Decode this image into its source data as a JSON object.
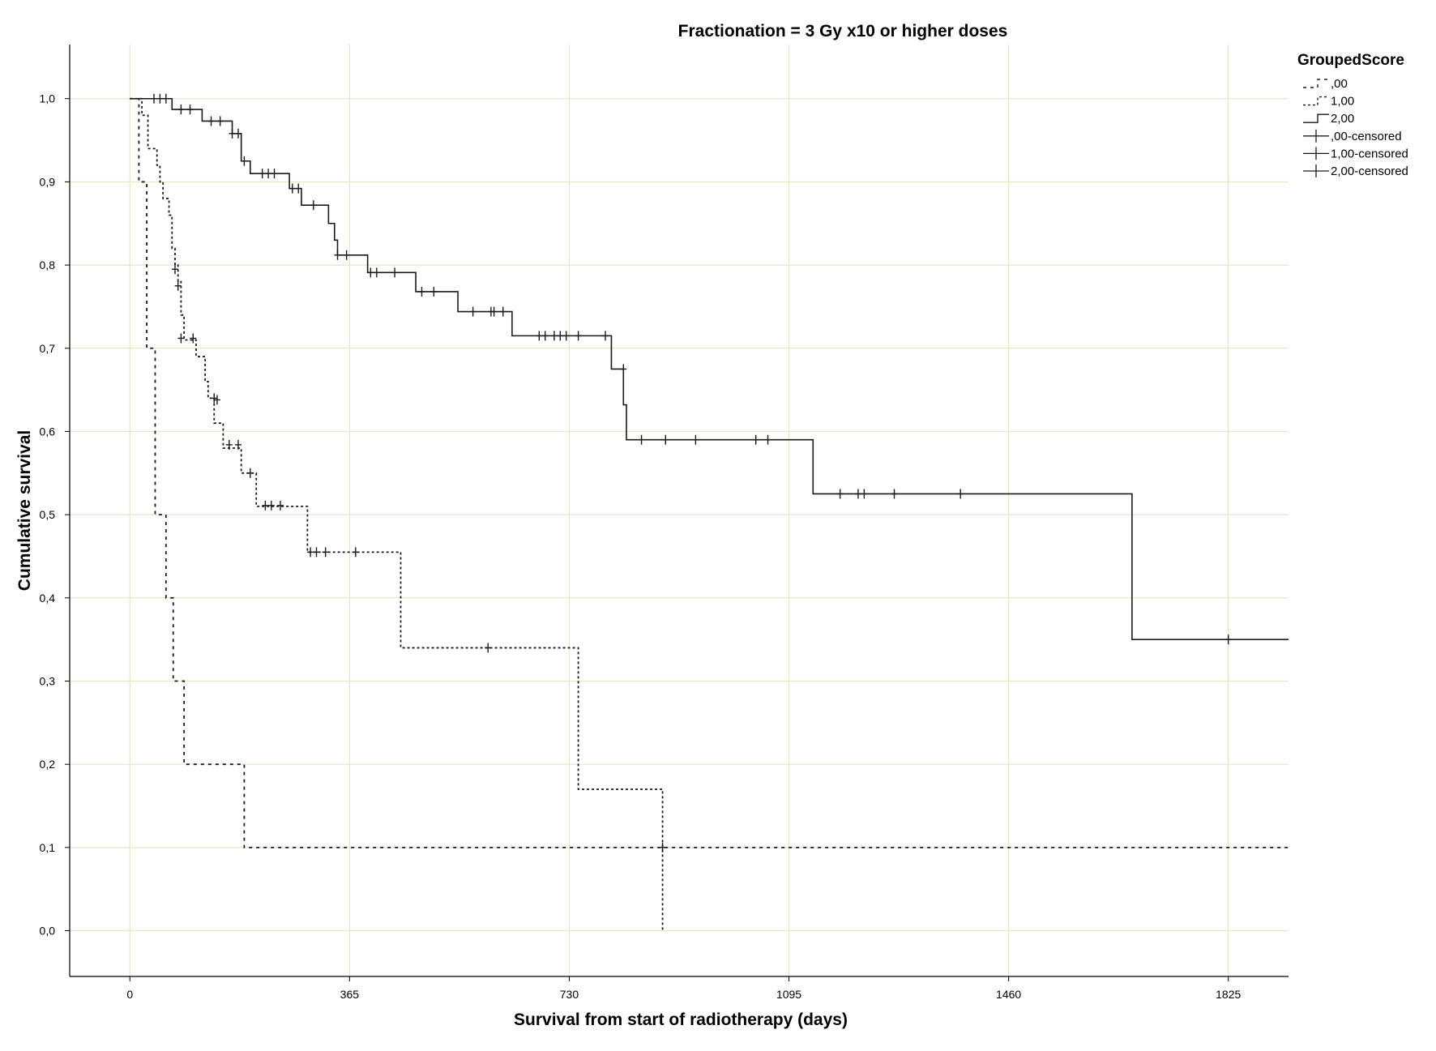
{
  "chart_data": {
    "type": "line",
    "subtype": "kaplan-meier-step",
    "title": "Fractionation = 3 Gy x10 or higher doses",
    "xlabel": "Survival from start of radiotherapy (days)",
    "ylabel": "Cumulative survival",
    "x_ticks": [
      0,
      365,
      730,
      1095,
      1460,
      1825
    ],
    "x_tick_labels": [
      "0",
      "365",
      "730",
      "1095",
      "1460",
      "1825"
    ],
    "y_ticks": [
      0,
      0.1,
      0.2,
      0.3,
      0.4,
      0.5,
      0.6,
      0.7,
      0.8,
      0.9,
      1.0
    ],
    "y_tick_labels": [
      "0,0",
      "0,1",
      "0,2",
      "0,3",
      "0,4",
      "0,5",
      "0,6",
      "0,7",
      "0,8",
      "0,9",
      "1,0"
    ],
    "xlim": [
      -100,
      1925
    ],
    "ylim": [
      -0.055,
      1.065
    ],
    "grid": true,
    "grid_color": "#e6e6c8",
    "legend": {
      "title": "GroupedScore",
      "position": "top-right",
      "entries": [
        ",00",
        "1,00",
        "2,00",
        ",00-censored",
        "1,00-censored",
        "2,00-censored"
      ]
    },
    "series": [
      {
        "name": ",00",
        "style": "dashed-sparse",
        "steps": [
          [
            0,
            1.0
          ],
          [
            15,
            0.9
          ],
          [
            28,
            0.7
          ],
          [
            42,
            0.5
          ],
          [
            60,
            0.4
          ],
          [
            72,
            0.3
          ],
          [
            90,
            0.2
          ],
          [
            190,
            0.1
          ],
          [
            1925,
            0.1
          ]
        ],
        "censored": []
      },
      {
        "name": "1,00",
        "style": "dotted",
        "steps": [
          [
            0,
            1.0
          ],
          [
            20,
            0.98
          ],
          [
            30,
            0.94
          ],
          [
            45,
            0.92
          ],
          [
            50,
            0.9
          ],
          [
            55,
            0.88
          ],
          [
            65,
            0.86
          ],
          [
            70,
            0.82
          ],
          [
            75,
            0.8
          ],
          [
            80,
            0.78
          ],
          [
            85,
            0.74
          ],
          [
            90,
            0.71
          ],
          [
            110,
            0.69
          ],
          [
            125,
            0.66
          ],
          [
            130,
            0.64
          ],
          [
            140,
            0.61
          ],
          [
            155,
            0.58
          ],
          [
            185,
            0.55
          ],
          [
            210,
            0.51
          ],
          [
            295,
            0.455
          ],
          [
            450,
            0.34
          ],
          [
            745,
            0.17
          ],
          [
            885,
            0.0
          ]
        ],
        "censored": [
          [
            75,
            0.795
          ],
          [
            80,
            0.775
          ],
          [
            85,
            0.712
          ],
          [
            105,
            0.712
          ],
          [
            140,
            0.64
          ],
          [
            145,
            0.638
          ],
          [
            165,
            0.584
          ],
          [
            180,
            0.584
          ],
          [
            200,
            0.55
          ],
          [
            225,
            0.511
          ],
          [
            235,
            0.511
          ],
          [
            250,
            0.511
          ],
          [
            300,
            0.455
          ],
          [
            310,
            0.455
          ],
          [
            325,
            0.455
          ],
          [
            375,
            0.455
          ],
          [
            595,
            0.34
          ],
          [
            885,
            0.1
          ]
        ]
      },
      {
        "name": "2,00",
        "style": "solid",
        "steps": [
          [
            0,
            1.0
          ],
          [
            70,
            0.987
          ],
          [
            120,
            0.973
          ],
          [
            170,
            0.958
          ],
          [
            185,
            0.925
          ],
          [
            200,
            0.91
          ],
          [
            265,
            0.892
          ],
          [
            285,
            0.872
          ],
          [
            330,
            0.85
          ],
          [
            340,
            0.83
          ],
          [
            345,
            0.812
          ],
          [
            395,
            0.791
          ],
          [
            475,
            0.768
          ],
          [
            545,
            0.744
          ],
          [
            635,
            0.715
          ],
          [
            800,
            0.675
          ],
          [
            820,
            0.632
          ],
          [
            825,
            0.59
          ],
          [
            1135,
            0.525
          ],
          [
            1665,
            0.35
          ],
          [
            1925,
            0.35
          ]
        ],
        "censored": [
          [
            40,
            1.0
          ],
          [
            50,
            1.0
          ],
          [
            60,
            1.0
          ],
          [
            85,
            0.987
          ],
          [
            100,
            0.987
          ],
          [
            135,
            0.973
          ],
          [
            150,
            0.973
          ],
          [
            170,
            0.958
          ],
          [
            180,
            0.958
          ],
          [
            190,
            0.925
          ],
          [
            220,
            0.91
          ],
          [
            230,
            0.91
          ],
          [
            240,
            0.91
          ],
          [
            270,
            0.892
          ],
          [
            280,
            0.892
          ],
          [
            305,
            0.872
          ],
          [
            345,
            0.812
          ],
          [
            360,
            0.812
          ],
          [
            400,
            0.791
          ],
          [
            410,
            0.791
          ],
          [
            440,
            0.791
          ],
          [
            485,
            0.768
          ],
          [
            505,
            0.768
          ],
          [
            570,
            0.744
          ],
          [
            600,
            0.744
          ],
          [
            605,
            0.744
          ],
          [
            620,
            0.744
          ],
          [
            680,
            0.715
          ],
          [
            690,
            0.715
          ],
          [
            705,
            0.715
          ],
          [
            715,
            0.715
          ],
          [
            725,
            0.715
          ],
          [
            745,
            0.715
          ],
          [
            790,
            0.715
          ],
          [
            820,
            0.675
          ],
          [
            850,
            0.59
          ],
          [
            890,
            0.59
          ],
          [
            940,
            0.59
          ],
          [
            1040,
            0.59
          ],
          [
            1060,
            0.59
          ],
          [
            1180,
            0.525
          ],
          [
            1210,
            0.525
          ],
          [
            1220,
            0.525
          ],
          [
            1270,
            0.525
          ],
          [
            1380,
            0.525
          ],
          [
            1825,
            0.35
          ]
        ]
      }
    ]
  }
}
